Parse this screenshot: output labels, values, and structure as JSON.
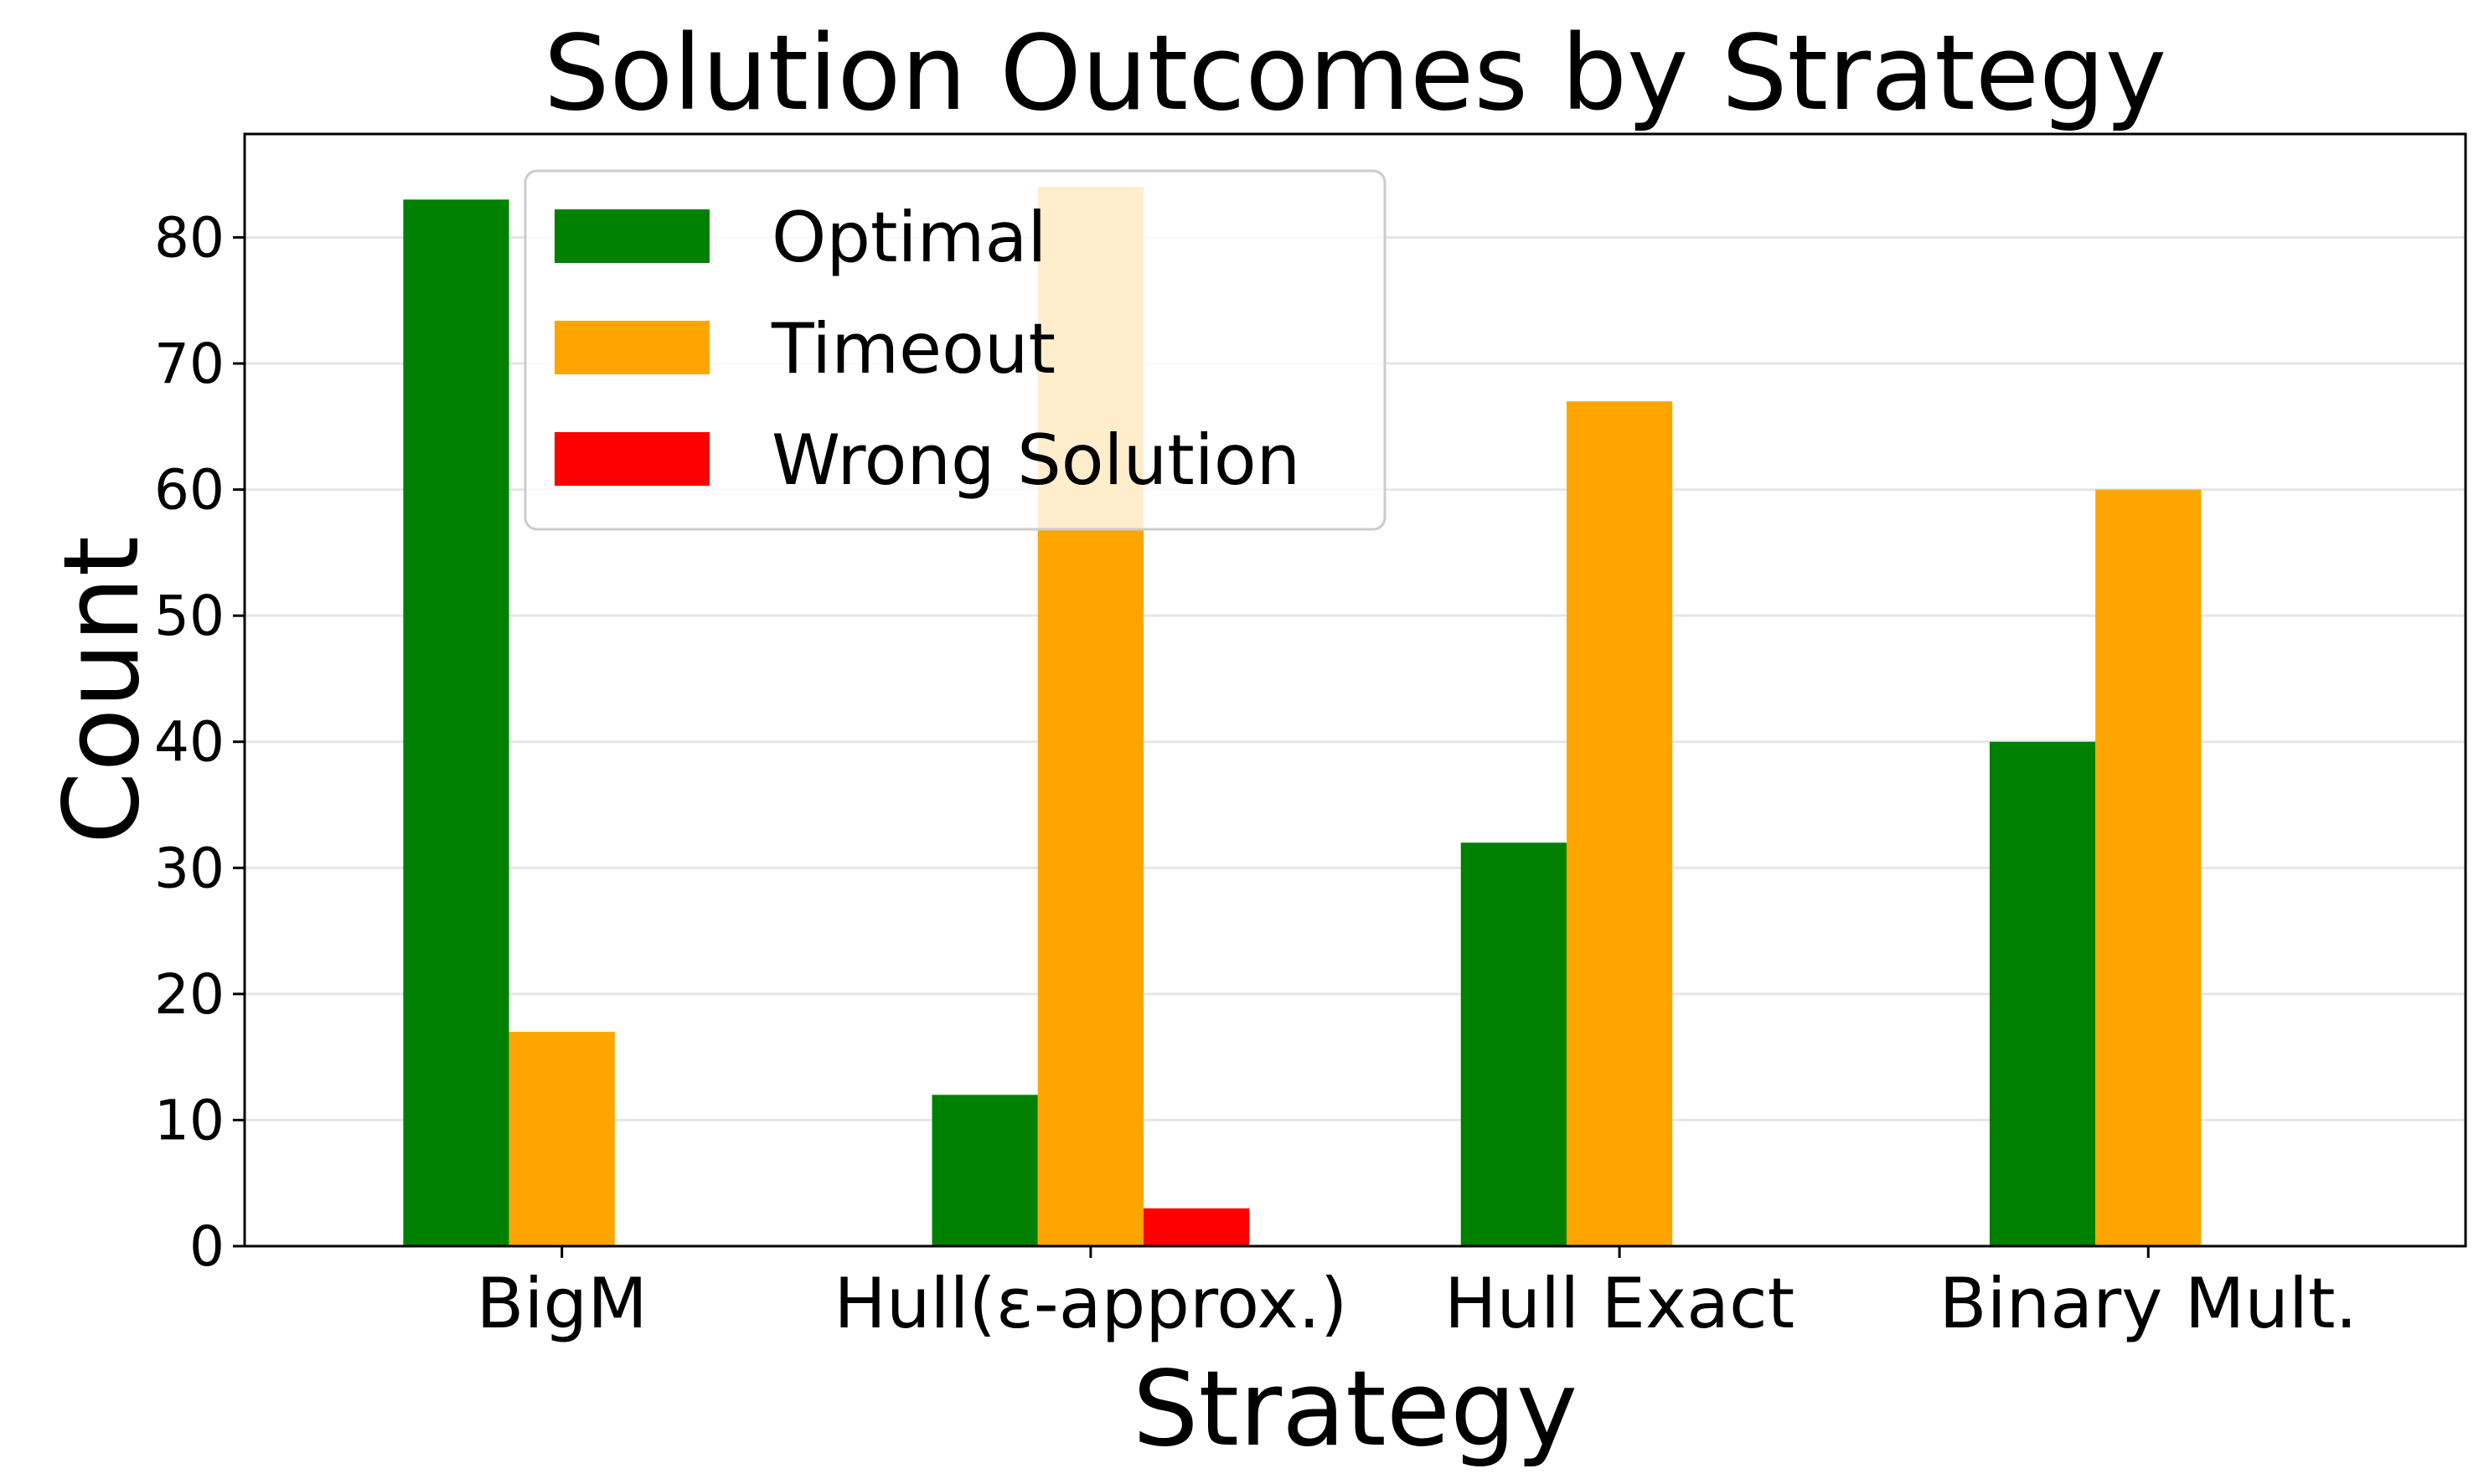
{
  "chart_data": {
    "type": "bar",
    "title": "Solution Outcomes by Strategy",
    "xlabel": "Strategy",
    "ylabel": "Count",
    "categories": [
      "BigM",
      "Hull(ε-approx.)",
      "Hull Exact",
      "Binary Mult."
    ],
    "series": [
      {
        "name": "Optimal",
        "color": "#008000",
        "values": [
          83,
          12,
          32,
          40
        ]
      },
      {
        "name": "Timeout",
        "color": "#ffa500",
        "values": [
          17,
          84,
          67,
          60
        ]
      },
      {
        "name": "Wrong Solution",
        "color": "#ff0000",
        "values": [
          0,
          3,
          0,
          0
        ]
      }
    ],
    "ylim": [
      0,
      88.2
    ],
    "yticks": [
      0,
      10,
      20,
      30,
      40,
      50,
      60,
      70,
      80
    ],
    "grid": "y",
    "legend_position": "upper-center-left",
    "legend_alpha": 0.8
  }
}
